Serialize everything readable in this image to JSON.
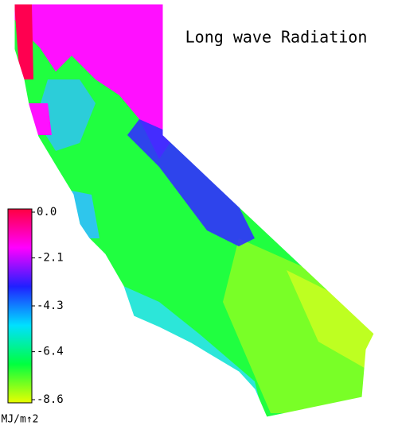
{
  "title": "Long wave Radiation",
  "colorbar": {
    "lim": [
      -8.6,
      0
    ],
    "ticks": [
      {
        "value": 0,
        "label": "0.0"
      },
      -2.1,
      -4.3,
      -6.4,
      -8.6
    ],
    "colors": [
      "#ff0040",
      "#ff00ff",
      "#2020ff",
      "#00e0ff",
      "#00ff40",
      "#e8ff00"
    ],
    "unit": "MJ/m↑2"
  }
}
